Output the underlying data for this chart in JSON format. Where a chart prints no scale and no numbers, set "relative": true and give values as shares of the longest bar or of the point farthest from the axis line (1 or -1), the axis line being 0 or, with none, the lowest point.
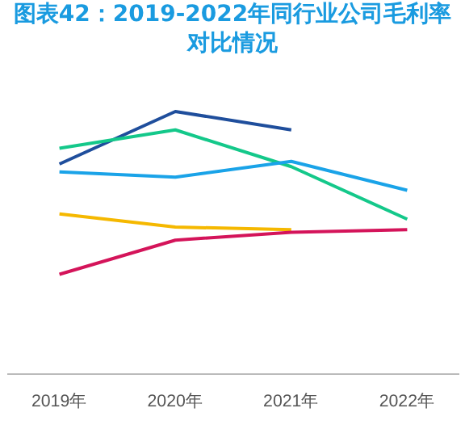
{
  "chart_data": {
    "type": "line",
    "title": "图表42：2019-2022年同行业公司毛利率对比情况",
    "relative": true,
    "categories": [
      "2019年",
      "2020年",
      "2021年",
      "2022年"
    ],
    "series": [
      {
        "color": "#1f4e9c",
        "values": [
          0.8,
          1.0,
          0.93,
          null
        ]
      },
      {
        "color": "#14c88a",
        "values": [
          0.86,
          0.93,
          0.79,
          0.59
        ]
      },
      {
        "color": "#1aa3e8",
        "values": [
          0.77,
          0.75,
          0.81,
          0.7
        ]
      },
      {
        "color": "#f5b800",
        "values": [
          0.61,
          0.56,
          0.55,
          null
        ]
      },
      {
        "color": "#d4145a",
        "values": [
          0.38,
          0.51,
          0.54,
          0.55
        ]
      }
    ],
    "grid": false,
    "marker": "none",
    "line_style": "solid"
  }
}
